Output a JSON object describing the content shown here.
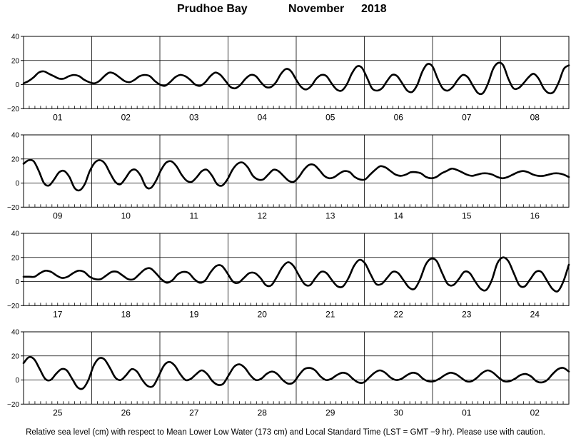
{
  "header": {
    "station": "Prudhoe Bay",
    "month": "November",
    "year": "2018"
  },
  "footer_note": "Relative sea level (cm) with respect to Mean Lower Low Water (173 cm) and Local Standard Time (LST = GMT −9 hr). Please use with caution.",
  "colors": {
    "line": "#000000",
    "grid": "#000000",
    "background": "#ffffff"
  },
  "chart_data": [
    {
      "type": "line",
      "ylim": [
        -20,
        40
      ],
      "yticks": [
        "−20",
        "0",
        "20",
        "40"
      ],
      "grid": true,
      "day_labels": [
        "01",
        "02",
        "03",
        "04",
        "05",
        "06",
        "07",
        "08"
      ],
      "series": [
        {
          "hourly": [
            1,
            3,
            6,
            10,
            11,
            9,
            7,
            5,
            5,
            7,
            8,
            7,
            4,
            2,
            1,
            3,
            7,
            10,
            9,
            6,
            3,
            2,
            4,
            7,
            8,
            7,
            3,
            0,
            -1,
            2,
            6,
            8,
            7,
            4,
            0,
            -1,
            2,
            7,
            10,
            8,
            3,
            -2,
            -3,
            0,
            5,
            8,
            7,
            2,
            -2,
            -2,
            2,
            9,
            13,
            11,
            4,
            -2,
            -4,
            -1,
            5,
            8,
            7,
            1,
            -4,
            -5,
            0,
            9,
            15,
            14,
            6,
            -3,
            -5,
            -3,
            3,
            8,
            7,
            1,
            -5,
            -6,
            0,
            11,
            17,
            15,
            5,
            -3,
            -5,
            -2,
            4,
            8,
            6,
            -1,
            -7,
            -7,
            1,
            13,
            18,
            16,
            5,
            -3,
            -3,
            1,
            6,
            9,
            5,
            -3,
            -7,
            -6,
            2,
            13,
            16
          ]
        }
      ]
    },
    {
      "type": "line",
      "ylim": [
        -20,
        40
      ],
      "yticks": [
        "−20",
        "0",
        "20",
        "40"
      ],
      "grid": true,
      "day_labels": [
        "09",
        "10",
        "11",
        "12",
        "13",
        "14",
        "15",
        "16"
      ],
      "series": [
        {
          "hourly": [
            16,
            19,
            18,
            10,
            0,
            -2,
            3,
            9,
            10,
            5,
            -4,
            -6,
            -1,
            10,
            17,
            19,
            16,
            8,
            1,
            -1,
            4,
            10,
            11,
            6,
            -3,
            -4,
            2,
            11,
            17,
            18,
            14,
            7,
            2,
            1,
            5,
            10,
            11,
            6,
            -1,
            -2,
            3,
            11,
            16,
            17,
            13,
            6,
            3,
            3,
            7,
            11,
            10,
            6,
            2,
            1,
            5,
            11,
            15,
            15,
            11,
            6,
            4,
            5,
            8,
            10,
            9,
            5,
            3,
            3,
            7,
            11,
            14,
            13,
            10,
            7,
            6,
            7,
            9,
            9,
            8,
            5,
            4,
            5,
            8,
            10,
            12,
            11,
            9,
            7,
            6,
            7,
            8,
            8,
            7,
            5,
            4,
            5,
            7,
            9,
            10,
            9,
            7,
            6,
            6,
            7,
            8,
            8,
            7,
            5
          ]
        }
      ]
    },
    {
      "type": "line",
      "ylim": [
        -20,
        40
      ],
      "yticks": [
        "−20",
        "0",
        "20",
        "40"
      ],
      "grid": true,
      "day_labels": [
        "17",
        "18",
        "19",
        "20",
        "21",
        "22",
        "23",
        "24"
      ],
      "series": [
        {
          "hourly": [
            4,
            4,
            4,
            7,
            9,
            8,
            5,
            3,
            4,
            7,
            9,
            8,
            4,
            2,
            2,
            5,
            8,
            8,
            5,
            2,
            2,
            6,
            10,
            11,
            7,
            2,
            -1,
            1,
            6,
            8,
            7,
            2,
            -1,
            1,
            8,
            13,
            13,
            7,
            0,
            -1,
            3,
            7,
            7,
            3,
            -3,
            -3,
            4,
            12,
            16,
            13,
            5,
            -2,
            -3,
            3,
            8,
            7,
            1,
            -4,
            -4,
            3,
            13,
            18,
            15,
            6,
            -2,
            -2,
            3,
            8,
            7,
            1,
            -5,
            -6,
            2,
            14,
            19,
            17,
            7,
            -2,
            -3,
            2,
            8,
            7,
            0,
            -6,
            -7,
            1,
            15,
            20,
            17,
            7,
            -3,
            -4,
            2,
            8,
            8,
            1,
            -6,
            -8,
            0,
            14
          ]
        }
      ]
    },
    {
      "type": "line",
      "ylim": [
        -20,
        40
      ],
      "yticks": [
        "−20",
        "0",
        "20",
        "40"
      ],
      "grid": true,
      "day_labels": [
        "25",
        "26",
        "27",
        "28",
        "29",
        "30",
        "01",
        "02"
      ],
      "series": [
        {
          "hourly": [
            14,
            19,
            17,
            9,
            1,
            0,
            5,
            9,
            8,
            1,
            -6,
            -7,
            0,
            12,
            18,
            17,
            10,
            2,
            0,
            4,
            9,
            7,
            0,
            -5,
            -5,
            3,
            12,
            15,
            12,
            5,
            0,
            1,
            5,
            8,
            5,
            -1,
            -4,
            -3,
            4,
            11,
            13,
            10,
            4,
            0,
            1,
            5,
            7,
            5,
            0,
            -3,
            -2,
            4,
            9,
            10,
            8,
            3,
            0,
            1,
            4,
            6,
            5,
            1,
            -2,
            -2,
            2,
            6,
            8,
            6,
            2,
            0,
            1,
            4,
            6,
            5,
            1,
            -1,
            -1,
            1,
            4,
            6,
            5,
            2,
            -1,
            -1,
            2,
            6,
            8,
            6,
            2,
            -1,
            -1,
            1,
            4,
            5,
            3,
            -1,
            -2,
            0,
            5,
            9,
            10,
            7
          ]
        }
      ]
    }
  ]
}
